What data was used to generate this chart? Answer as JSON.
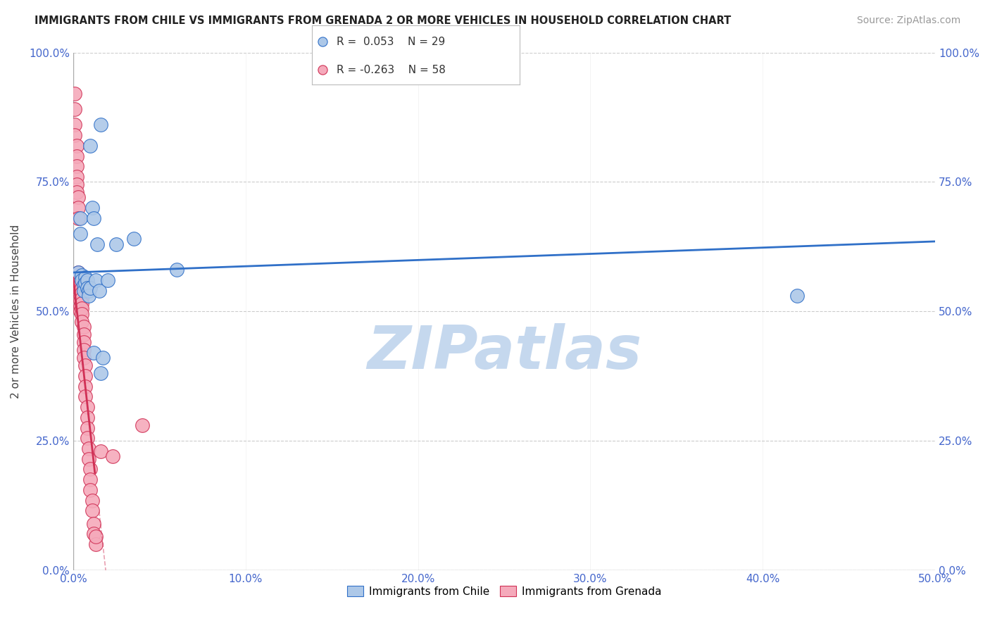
{
  "title": "IMMIGRANTS FROM CHILE VS IMMIGRANTS FROM GRENADA 2 OR MORE VEHICLES IN HOUSEHOLD CORRELATION CHART",
  "source": "Source: ZipAtlas.com",
  "ylabel": "2 or more Vehicles in Household",
  "xmin": 0.0,
  "xmax": 0.5,
  "ymin": 0.0,
  "ymax": 1.0,
  "xticks": [
    0.0,
    0.1,
    0.2,
    0.3,
    0.4,
    0.5
  ],
  "xticklabels": [
    "0.0%",
    "10.0%",
    "20.0%",
    "30.0%",
    "40.0%",
    "50.0%"
  ],
  "yticks": [
    0.0,
    0.25,
    0.5,
    0.75,
    1.0
  ],
  "yticklabels": [
    "0.0%",
    "25.0%",
    "50.0%",
    "75.0%",
    "100.0%"
  ],
  "chile_R": 0.053,
  "chile_N": 29,
  "grenada_R": -0.263,
  "grenada_N": 58,
  "chile_color": "#adc8e8",
  "grenada_color": "#f5aabb",
  "chile_line_color": "#3070c8",
  "grenada_line_color": "#d03055",
  "chile_scatter": [
    [
      0.003,
      0.575
    ],
    [
      0.004,
      0.68
    ],
    [
      0.004,
      0.65
    ],
    [
      0.005,
      0.57
    ],
    [
      0.005,
      0.56
    ],
    [
      0.006,
      0.55
    ],
    [
      0.006,
      0.54
    ],
    [
      0.007,
      0.565
    ],
    [
      0.007,
      0.555
    ],
    [
      0.008,
      0.56
    ],
    [
      0.008,
      0.545
    ],
    [
      0.009,
      0.54
    ],
    [
      0.009,
      0.53
    ],
    [
      0.01,
      0.545
    ],
    [
      0.01,
      0.82
    ],
    [
      0.011,
      0.7
    ],
    [
      0.012,
      0.68
    ],
    [
      0.012,
      0.42
    ],
    [
      0.013,
      0.56
    ],
    [
      0.014,
      0.63
    ],
    [
      0.015,
      0.54
    ],
    [
      0.016,
      0.38
    ],
    [
      0.017,
      0.41
    ],
    [
      0.02,
      0.56
    ],
    [
      0.025,
      0.63
    ],
    [
      0.035,
      0.64
    ],
    [
      0.06,
      0.58
    ],
    [
      0.42,
      0.53
    ],
    [
      0.016,
      0.86
    ]
  ],
  "grenada_scatter": [
    [
      0.001,
      0.92
    ],
    [
      0.001,
      0.89
    ],
    [
      0.001,
      0.86
    ],
    [
      0.001,
      0.84
    ],
    [
      0.002,
      0.82
    ],
    [
      0.002,
      0.8
    ],
    [
      0.002,
      0.78
    ],
    [
      0.002,
      0.76
    ],
    [
      0.002,
      0.745
    ],
    [
      0.002,
      0.73
    ],
    [
      0.003,
      0.72
    ],
    [
      0.003,
      0.7
    ],
    [
      0.003,
      0.68
    ],
    [
      0.003,
      0.575
    ],
    [
      0.003,
      0.565
    ],
    [
      0.003,
      0.555
    ],
    [
      0.003,
      0.545
    ],
    [
      0.004,
      0.56
    ],
    [
      0.004,
      0.55
    ],
    [
      0.004,
      0.54
    ],
    [
      0.004,
      0.53
    ],
    [
      0.004,
      0.52
    ],
    [
      0.004,
      0.51
    ],
    [
      0.004,
      0.5
    ],
    [
      0.005,
      0.545
    ],
    [
      0.005,
      0.535
    ],
    [
      0.005,
      0.525
    ],
    [
      0.005,
      0.515
    ],
    [
      0.005,
      0.505
    ],
    [
      0.005,
      0.495
    ],
    [
      0.005,
      0.48
    ],
    [
      0.006,
      0.47
    ],
    [
      0.006,
      0.455
    ],
    [
      0.006,
      0.44
    ],
    [
      0.006,
      0.425
    ],
    [
      0.006,
      0.41
    ],
    [
      0.007,
      0.395
    ],
    [
      0.007,
      0.375
    ],
    [
      0.007,
      0.355
    ],
    [
      0.007,
      0.335
    ],
    [
      0.008,
      0.315
    ],
    [
      0.008,
      0.295
    ],
    [
      0.008,
      0.275
    ],
    [
      0.008,
      0.255
    ],
    [
      0.009,
      0.235
    ],
    [
      0.009,
      0.215
    ],
    [
      0.01,
      0.195
    ],
    [
      0.01,
      0.175
    ],
    [
      0.01,
      0.155
    ],
    [
      0.011,
      0.135
    ],
    [
      0.011,
      0.115
    ],
    [
      0.012,
      0.09
    ],
    [
      0.012,
      0.07
    ],
    [
      0.013,
      0.05
    ],
    [
      0.013,
      0.065
    ],
    [
      0.016,
      0.23
    ],
    [
      0.023,
      0.22
    ],
    [
      0.04,
      0.28
    ]
  ],
  "watermark": "ZIPatlas",
  "watermark_color": "#c5d8ee",
  "legend_chile_label": "Immigrants from Chile",
  "legend_grenada_label": "Immigrants from Grenada"
}
